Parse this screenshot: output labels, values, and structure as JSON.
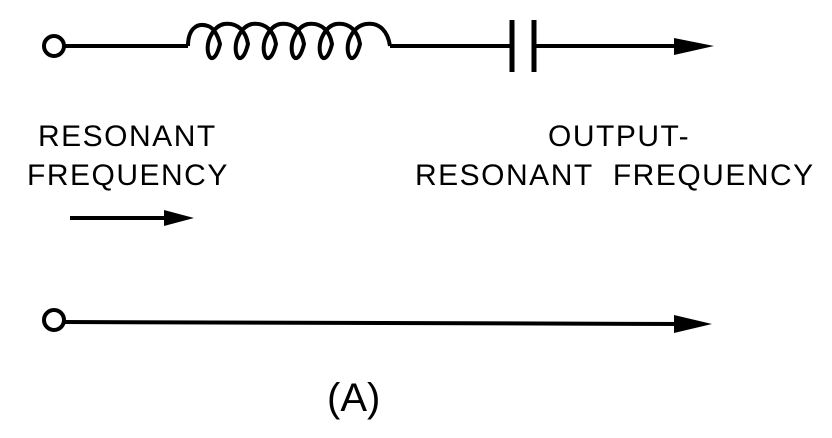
{
  "labels": {
    "input_line1": "RESONANT",
    "input_line2": "FREQUENCY",
    "output_line1": "OUTPUT-",
    "output_line2": "RESONANT  FREQUENCY",
    "caption": "(A)"
  },
  "colors": {
    "ink": "#000000",
    "background": "#ffffff"
  }
}
